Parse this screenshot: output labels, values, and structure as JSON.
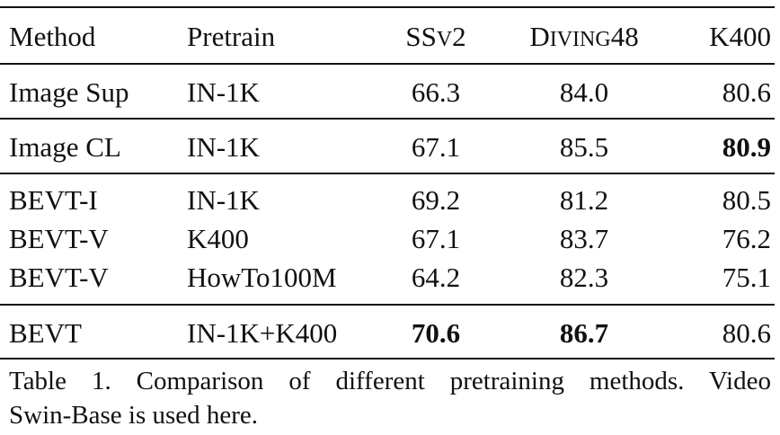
{
  "table": {
    "headers": {
      "method": "Method",
      "pretrain": "Pretrain",
      "ssv2_big": "SS",
      "ssv2_small": "V",
      "ssv2_num": "2",
      "diving_big1": "D",
      "diving_small": "IVING",
      "diving_num": "48",
      "k400": "K400"
    },
    "rows": [
      {
        "method": "Image Sup",
        "pretrain": "IN-1K",
        "ssv2": "66.3",
        "diving": "84.0",
        "k400": "80.6"
      },
      {
        "method": "Image CL",
        "pretrain": "IN-1K",
        "ssv2": "67.1",
        "diving": "85.5",
        "k400": "80.9"
      },
      {
        "method": "BEVT-I",
        "pretrain": "IN-1K",
        "ssv2": "69.2",
        "diving": "81.2",
        "k400": "80.5"
      },
      {
        "method": "BEVT-V",
        "pretrain": "K400",
        "ssv2": "67.1",
        "diving": "83.7",
        "k400": "76.2"
      },
      {
        "method": "BEVT-V",
        "pretrain": "HowTo100M",
        "ssv2": "64.2",
        "diving": "82.3",
        "k400": "75.1"
      },
      {
        "method": "BEVT",
        "pretrain": "IN-1K+K400",
        "ssv2": "70.6",
        "diving": "86.7",
        "k400": "80.6"
      }
    ]
  },
  "caption": {
    "line1": "Table 1.  Comparison of different pretraining methods.  Video",
    "line2": "Swin-Base is used here."
  }
}
